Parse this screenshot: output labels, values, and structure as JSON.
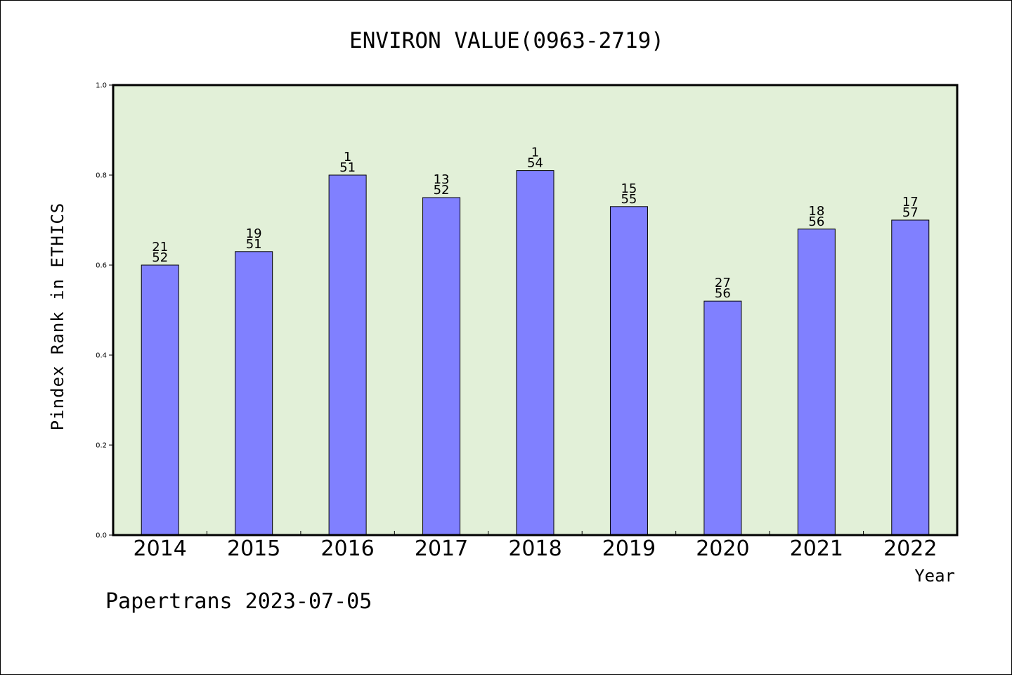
{
  "chart_data": {
    "type": "bar",
    "title": "ENVIRON VALUE(0963-2719)",
    "xlabel": "Year",
    "ylabel": "Pindex Rank in ETHICS",
    "ylim": [
      0,
      1.0
    ],
    "yticks": [
      "0.0",
      "0.2",
      "0.4",
      "0.6",
      "0.8",
      "1.0"
    ],
    "categories": [
      "2014",
      "2015",
      "2016",
      "2017",
      "2018",
      "2019",
      "2020",
      "2021",
      "2022"
    ],
    "values": [
      0.6,
      0.63,
      0.8,
      0.75,
      0.81,
      0.73,
      0.52,
      0.68,
      0.7
    ],
    "labels_top": [
      "21",
      "19",
      "1",
      "13",
      "1",
      "15",
      "27",
      "18",
      "17"
    ],
    "labels_bottom": [
      "52",
      "51",
      "51",
      "52",
      "54",
      "55",
      "56",
      "56",
      "57"
    ],
    "plot_background": "#e2f0d8",
    "bar_color": "#8080ff",
    "grid": false,
    "legend": "none"
  },
  "footer": "Papertrans 2023-07-05"
}
